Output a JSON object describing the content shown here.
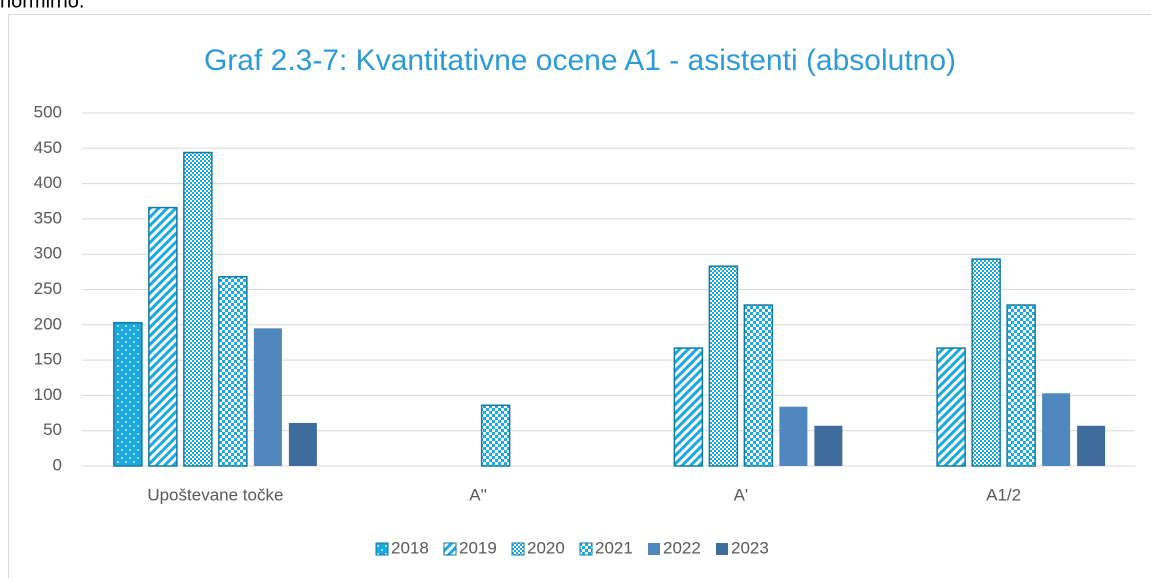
{
  "page_text": "normirno.",
  "chart_data": {
    "type": "bar",
    "title": "Graf 2.3-7: Kvantitativne ocene A1 - asistenti (absolutno)",
    "categories": [
      "Upoštevane točke",
      "A''",
      "A'",
      "A1/2"
    ],
    "series": [
      {
        "name": "2018",
        "color": "#1aa9e0",
        "pattern": "dots",
        "values": [
          203,
          null,
          null,
          null
        ]
      },
      {
        "name": "2019",
        "color": "#1aa9e0",
        "pattern": "diagonal",
        "values": [
          366,
          null,
          167,
          167
        ]
      },
      {
        "name": "2020",
        "color": "#1aa9e0",
        "pattern": "checker-small",
        "values": [
          444,
          null,
          283,
          293
        ]
      },
      {
        "name": "2021",
        "color": "#1aa9e0",
        "pattern": "checker-large",
        "values": [
          268,
          86,
          228,
          228
        ]
      },
      {
        "name": "2022",
        "color": "#4f87be",
        "pattern": "solid",
        "values": [
          195,
          null,
          84,
          103
        ]
      },
      {
        "name": "2023",
        "color": "#3f6e9e",
        "pattern": "solid",
        "values": [
          61,
          null,
          57,
          57
        ]
      }
    ],
    "ylim": [
      0,
      500
    ],
    "yticks": [
      0,
      50,
      100,
      150,
      200,
      250,
      300,
      350,
      400,
      450,
      500
    ],
    "grid": true,
    "legend": "bottom"
  }
}
